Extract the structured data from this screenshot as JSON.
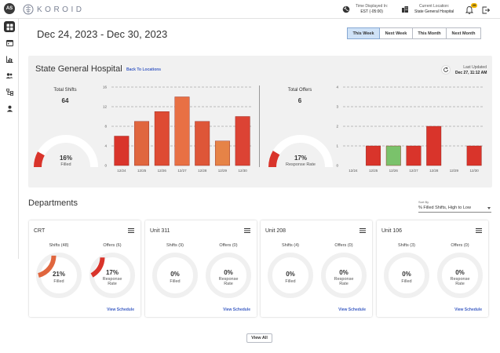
{
  "topbar": {
    "avatar_initials": "AS",
    "logo_text": "KOROID",
    "time_label": "Time Displayed In:",
    "time_value": "EST (-05:00)",
    "location_label": "Current Location:",
    "location_value": "State General Hospital",
    "notification_count": "29"
  },
  "sidebar": {
    "items": [
      {
        "icon": "dashboard-icon",
        "active": true
      },
      {
        "icon": "calendar-icon",
        "active": false
      },
      {
        "icon": "bar-chart-icon",
        "active": false
      },
      {
        "icon": "users-icon",
        "active": false
      },
      {
        "icon": "org-structure-icon",
        "active": false
      },
      {
        "icon": "person-icon",
        "active": false
      }
    ]
  },
  "header": {
    "date_range": "Dec 24, 2023 - Dec 30, 2023",
    "range_buttons": [
      "This Week",
      "Next Week",
      "This Month",
      "Next Month"
    ],
    "active_range": "This Week"
  },
  "hospital": {
    "title": "State General Hospital",
    "back_link": "Back To Locations",
    "last_updated_label": "Last Updated",
    "last_updated_value": "Dec 27, 11:12 AM",
    "shifts": {
      "label": "Total Shifts",
      "value": "64",
      "percent": "16%",
      "percent_value": 16,
      "caption": "Filled"
    },
    "offers": {
      "label": "Total Offers",
      "value": "6",
      "percent": "17%",
      "percent_value": 17,
      "caption": "Response Rate"
    }
  },
  "chart_data": [
    {
      "type": "bar",
      "title": "Total Shifts",
      "categories": [
        "12/24",
        "12/25",
        "12/26",
        "12/27",
        "12/28",
        "12/29",
        "12/30"
      ],
      "values": [
        6,
        9,
        11,
        14,
        9,
        5,
        10
      ],
      "colors": [
        "#d9342b",
        "#e0663e",
        "#de4b33",
        "#e87044",
        "#de5638",
        "#e68347",
        "#dc4334"
      ],
      "yticks": [
        0,
        4,
        8,
        12,
        16
      ],
      "ylim": [
        0,
        16
      ]
    },
    {
      "type": "bar",
      "title": "Total Offers",
      "categories": [
        "12/24",
        "12/25",
        "12/26",
        "12/27",
        "12/28",
        "12/29",
        "12/30"
      ],
      "values": [
        0,
        1,
        1,
        1,
        2,
        0,
        1
      ],
      "colors": [
        "#d9342b",
        "#d9342b",
        "#7ac26b",
        "#d9342b",
        "#d9342b",
        "#d9342b",
        "#d9342b"
      ],
      "yticks": [
        0,
        1,
        2,
        3,
        4
      ],
      "ylim": [
        0,
        4
      ]
    }
  ],
  "departments": {
    "title": "Departments",
    "sort_label": "Sort By",
    "sort_value": "% Filled Shifts, High to Low",
    "view_schedule": "View Schedule",
    "view_all": "View All",
    "cards": [
      {
        "name": "CRT",
        "shifts_label": "Shifts (48)",
        "offers_label": "Offers (6)",
        "filled": "21%",
        "filled_value": 21,
        "filled_caption": "Filled",
        "response": "17%",
        "response_value": 17,
        "response_caption_1": "Response",
        "response_caption_2": "Rate"
      },
      {
        "name": "Unit 311",
        "shifts_label": "Shifts (9)",
        "offers_label": "Offers (0)",
        "filled": "0%",
        "filled_value": 0,
        "filled_caption": "Filled",
        "response": "0%",
        "response_value": 0,
        "response_caption_1": "Response",
        "response_caption_2": "Rate"
      },
      {
        "name": "Unit 208",
        "shifts_label": "Shifts (4)",
        "offers_label": "Offers (0)",
        "filled": "0%",
        "filled_value": 0,
        "filled_caption": "Filled",
        "response": "0%",
        "response_value": 0,
        "response_caption_1": "Response",
        "response_caption_2": "Rate"
      },
      {
        "name": "Unit 106",
        "shifts_label": "Shifts (3)",
        "offers_label": "Offers (0)",
        "filled": "0%",
        "filled_value": 0,
        "filled_caption": "Filled",
        "response": "0%",
        "response_value": 0,
        "response_caption_1": "Response",
        "response_caption_2": "Rate"
      }
    ]
  },
  "colors": {
    "accent": "#3f5fc4",
    "gauge_track": "#ffffff",
    "ring_track": "#f0f0f0",
    "gauge_fill": "#d9342b",
    "ring_fill": "#e0663e",
    "active_button": "#cfe2f7"
  }
}
